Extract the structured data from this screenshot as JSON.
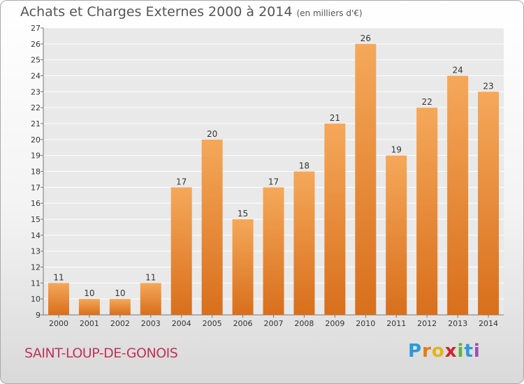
{
  "header": {
    "title": "Achats et Charges Externes 2000 à 2014",
    "unit": "(en milliers d'€)"
  },
  "footer": {
    "town": "SAINT-LOUP-DE-GONOIS",
    "logo": "Proxiti"
  },
  "colors": {
    "bar_light": "#f5a85a",
    "bar_dark": "#d86f1c",
    "plot_bg": "#e9e9e9",
    "grid": "#ffffff",
    "axis_text": "#333333",
    "town": "#c0335a"
  },
  "chart_data": {
    "type": "bar",
    "title": "Achats et Charges Externes 2000 à 2014",
    "subtitle": "(en milliers d'€)",
    "categories": [
      "2000",
      "2001",
      "2002",
      "2003",
      "2004",
      "2005",
      "2006",
      "2007",
      "2008",
      "2009",
      "2010",
      "2011",
      "2012",
      "2013",
      "2014"
    ],
    "values": [
      11,
      10,
      10,
      11,
      17,
      20,
      15,
      17,
      18,
      21,
      26,
      19,
      22,
      24,
      23
    ],
    "ylim": [
      9,
      27
    ],
    "yticks": [
      9,
      10,
      11,
      12,
      13,
      14,
      15,
      16,
      17,
      18,
      19,
      20,
      21,
      22,
      23,
      24,
      25,
      26,
      27
    ],
    "grid": true,
    "data_labels": true
  }
}
